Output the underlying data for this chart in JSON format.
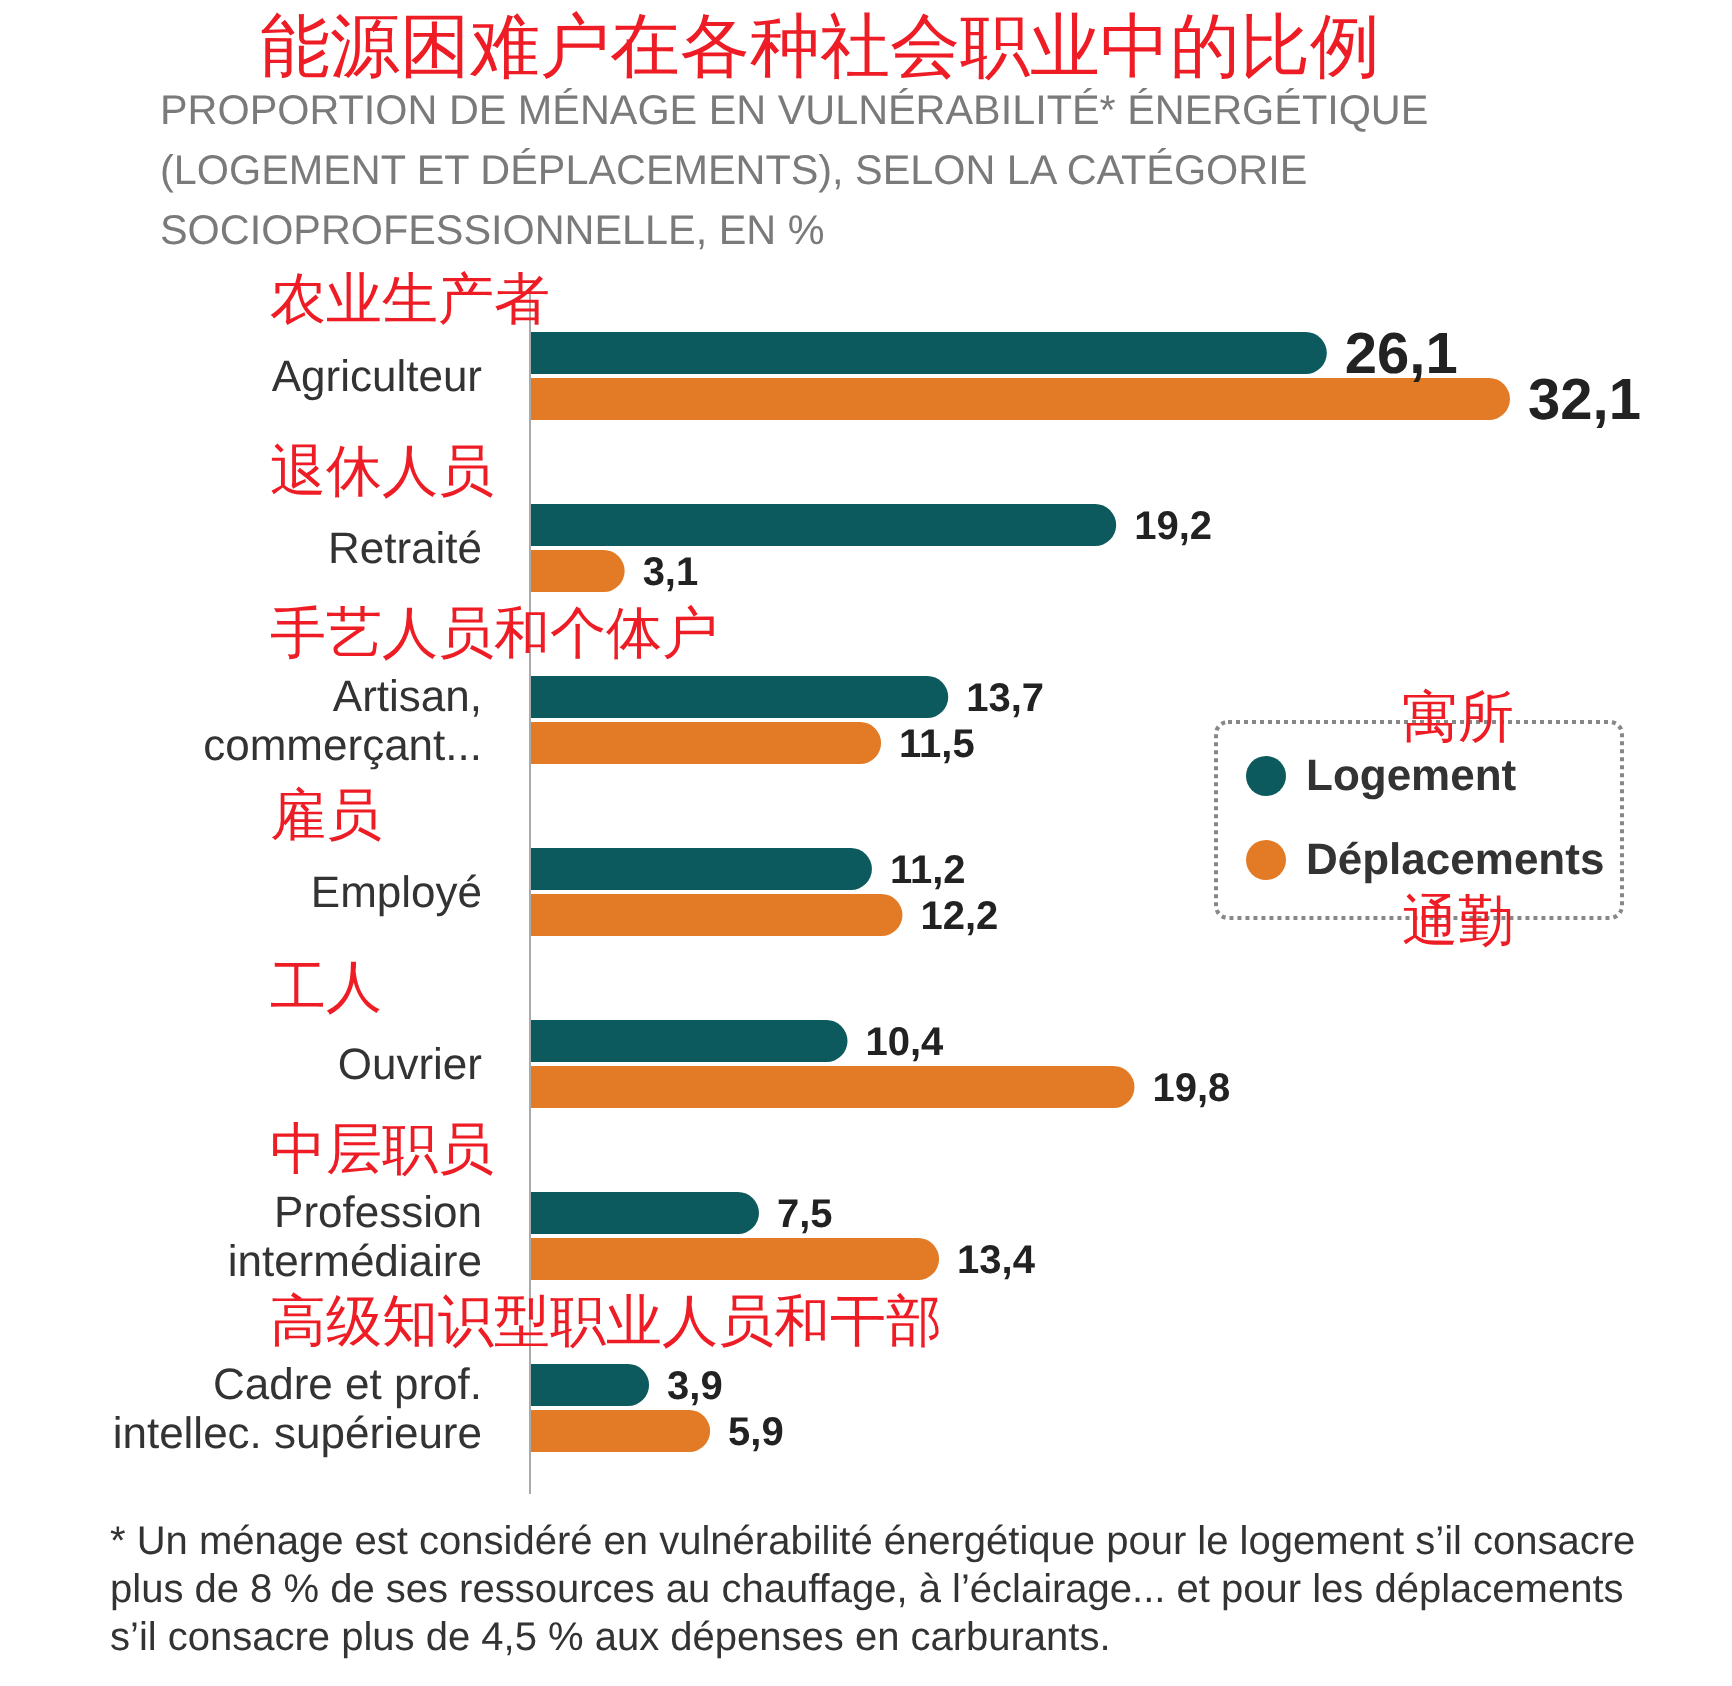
{
  "chart_data": {
    "type": "bar",
    "orientation": "horizontal",
    "title": "能源困难户在各种社会职业中的比例",
    "subtitle": "PROPORTION DE MÉNAGE EN VULNÉRABILITÉ* ÉNERGÉTIQUE\n(LOGEMENT ET DÉPLACEMENTS), SELON LA CATÉGORIE\nSOCIOPROFESSIONNELLE, EN %",
    "categories": [
      "Agriculteur",
      "Retraité",
      "Artisan, commerçant...",
      "Employé",
      "Ouvrier",
      "Profession intermédiaire",
      "Cadre et prof. intellec. supérieure"
    ],
    "series": [
      {
        "name": "Logement",
        "color": "#0d5a5e",
        "values": [
          26.1,
          19.2,
          13.7,
          11.2,
          10.4,
          7.5,
          3.9
        ],
        "value_labels": [
          "26,1",
          "19,2",
          "13,7",
          "11,2",
          "10,4",
          "7,5",
          "3,9"
        ]
      },
      {
        "name": "Déplacements",
        "color": "#e37b26",
        "values": [
          32.1,
          3.1,
          11.5,
          12.2,
          19.8,
          13.4,
          5.9
        ],
        "value_labels": [
          "32,1",
          "3,1",
          "11,5",
          "12,2",
          "19,8",
          "13,4",
          "5,9"
        ]
      }
    ],
    "legend": "right",
    "annotations": [
      "农业生产者",
      "退休人员",
      "手艺人员和个体户",
      "雇员",
      "工人",
      "中层职员",
      "高级知识型职业人员和干部",
      "寓所",
      "通勤",
      "* Un ménage est considéré en vulnérabilité énergétique pour le logement s’il consacre\nplus de 8 % de ses ressources au chauffage, à l’éclairage... et pour les déplacements\ns’il consacre plus de 4,5 % aux dépenses en carburants."
    ]
  }
}
